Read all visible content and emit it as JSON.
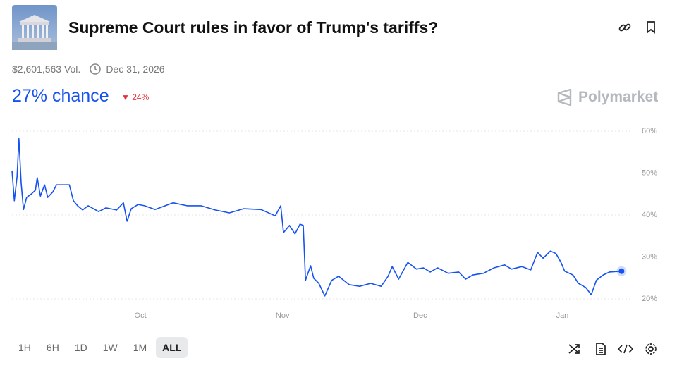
{
  "header": {
    "title": "Supreme Court rules in favor of Trump's tariffs?",
    "volume": "$2,601,563 Vol.",
    "end_date": "Dec 31, 2026",
    "chance": "27% chance",
    "change": "24%",
    "brand": "Polymarket"
  },
  "time_ranges": [
    "1H",
    "6H",
    "1D",
    "1W",
    "1M",
    "ALL"
  ],
  "chart_data": {
    "type": "line",
    "color": "#1652f0",
    "x": [
      0,
      0.5,
      1.1,
      1.5,
      2,
      2.5,
      3.2,
      4.2,
      5.1,
      5.5,
      6.2,
      7.1,
      7.8,
      8.9,
      9.7,
      12.5,
      13.4,
      14.3,
      15.4,
      16.6,
      18.9,
      20.5,
      22.8,
      24.3,
      25.1,
      26,
      27.5,
      28.9,
      31.2,
      35.1,
      38.2,
      41.2,
      44.3,
      47.4,
      50.5,
      54.3,
      57.4,
      58.6,
      59.2,
      60.5,
      61.7,
      62.8,
      63.5,
      64,
      65.1,
      65.8,
      66.9,
      68.2,
      69.7,
      71.2,
      73.5,
      75.8,
      78.2,
      80.5,
      82,
      82.9,
      84.3,
      86.3,
      88.2,
      89.7,
      91.2,
      92.8,
      95.1,
      97.4,
      98.9,
      100.5,
      102.8,
      105.1,
      107.4,
      108.9,
      111.2,
      113.1,
      114.6,
      115.8,
      117.4,
      118.6,
      119.7,
      120.5,
      122.3,
      123.5,
      125.1,
      126.3,
      127.4,
      128.9,
      130.3,
      132.9
    ],
    "values": [
      50.6,
      43.4,
      49.2,
      58.2,
      47.6,
      41.3,
      44.2,
      45,
      45.9,
      48.9,
      44.5,
      47.2,
      44.2,
      45.5,
      47.2,
      47.2,
      43.4,
      42.2,
      41.2,
      42.2,
      40.8,
      41.7,
      41.2,
      42.9,
      38.5,
      41.5,
      42.5,
      42.2,
      41.3,
      42.9,
      42.2,
      42.2,
      41.2,
      40.5,
      41.5,
      41.3,
      39.8,
      42.2,
      35.8,
      37.5,
      35.5,
      37.8,
      37.5,
      24.4,
      27.9,
      24.9,
      23.7,
      20.7,
      24.4,
      25.4,
      23.4,
      23,
      23.7,
      23,
      25.4,
      27.7,
      24.7,
      28.7,
      27.1,
      27.4,
      26.4,
      27.4,
      26.1,
      26.4,
      24.7,
      25.7,
      26.1,
      27.4,
      28.1,
      27.1,
      27.7,
      26.9,
      31.1,
      29.7,
      31.4,
      30.8,
      28.7,
      26.6,
      25.7,
      23.7,
      22.7,
      21,
      24.4,
      25.7,
      26.4,
      26.6
    ],
    "xlim": [
      0,
      135
    ],
    "xticks": [
      {
        "value": 28,
        "label": "Oct"
      },
      {
        "value": 59,
        "label": "Nov"
      },
      {
        "value": 89,
        "label": "Dec"
      },
      {
        "value": 120,
        "label": "Jan"
      }
    ],
    "ylim": [
      20,
      60
    ],
    "yticks": [
      {
        "value": 20,
        "label": "20%"
      },
      {
        "value": 30,
        "label": "30%"
      },
      {
        "value": 40,
        "label": "40%"
      },
      {
        "value": 50,
        "label": "50%"
      },
      {
        "value": 60,
        "label": "60%"
      }
    ],
    "grid": true
  }
}
